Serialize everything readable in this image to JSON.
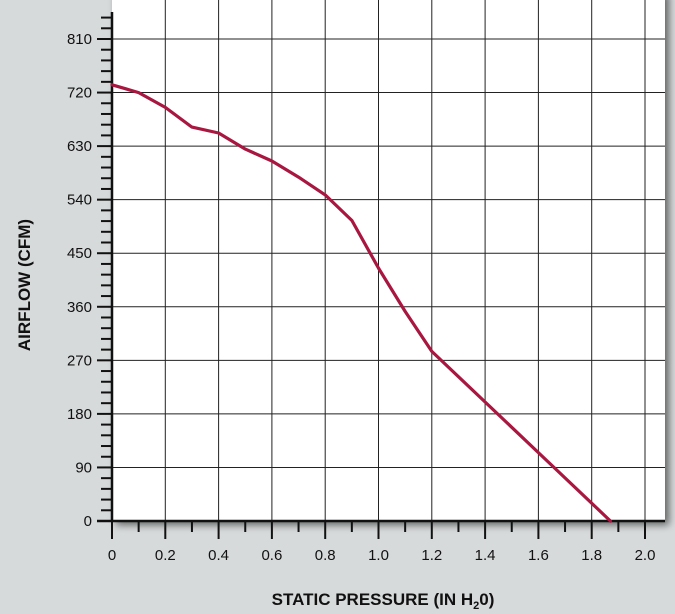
{
  "chart_data": {
    "type": "line",
    "title": "",
    "xlabel": "STATIC PRESSURE (IN H₂0)",
    "xlabel_parts": {
      "pre": "STATIC PRESSURE (IN H",
      "sub": "2",
      "post": "0)"
    },
    "ylabel": "AIRFLOW (CFM)",
    "xlim": [
      0,
      2.0
    ],
    "ylim": [
      0,
      810
    ],
    "x_ticks": [
      "0",
      "0.2",
      "0.4",
      "0.6",
      "0.8",
      "1.0",
      "1.2",
      "1.4",
      "1.6",
      "1.8",
      "2.0"
    ],
    "y_ticks": [
      "0",
      "90",
      "180",
      "270",
      "360",
      "450",
      "540",
      "630",
      "720",
      "810"
    ],
    "grid": true,
    "legend": "none",
    "series": [
      {
        "color": "#a8173f",
        "x": [
          0,
          0.1,
          0.2,
          0.3,
          0.4,
          0.5,
          0.6,
          0.7,
          0.8,
          0.9,
          1.0,
          1.1,
          1.2,
          1.4,
          1.6,
          1.87
        ],
        "y": [
          733,
          720,
          695,
          662,
          652,
          625,
          605,
          578,
          548,
          505,
          425,
          352,
          285,
          200,
          115,
          0
        ]
      }
    ]
  }
}
